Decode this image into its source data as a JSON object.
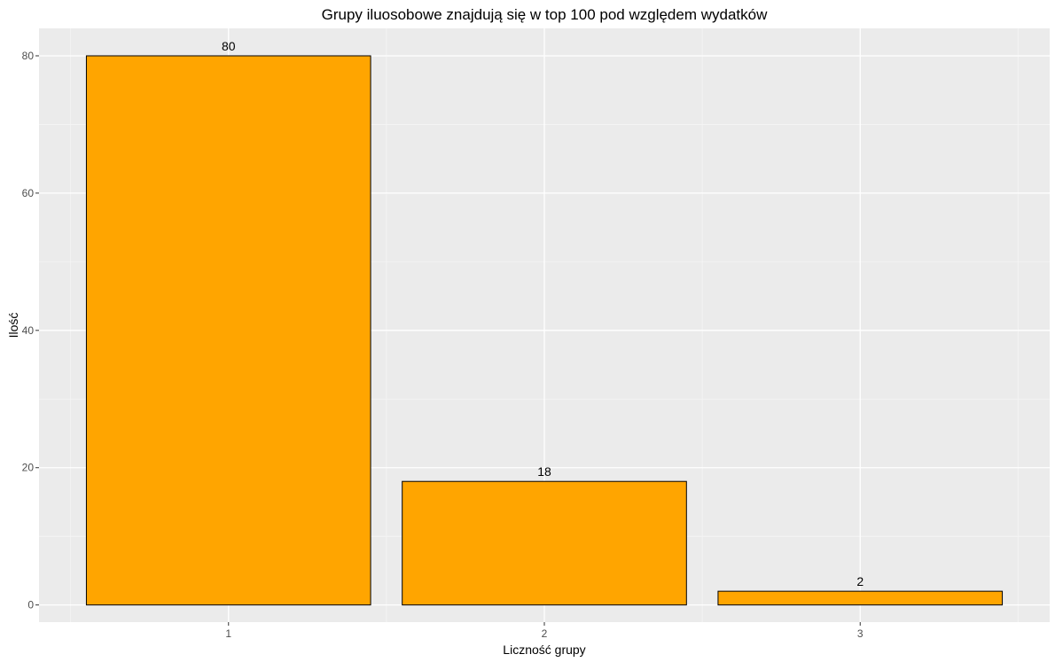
{
  "chart_data": {
    "type": "bar",
    "title": "Grupy iluosobowe znajdują się w top 100 pod względem wydatków",
    "xlabel": "Liczność grupy",
    "ylabel": "Ilość",
    "categories": [
      "1",
      "2",
      "3"
    ],
    "values": [
      80,
      18,
      2
    ],
    "data_labels": [
      "80",
      "18",
      "2"
    ],
    "ylim": [
      -2.5,
      84
    ],
    "y_ticks": [
      0,
      20,
      40,
      60,
      80
    ],
    "y_tick_labels": [
      "0",
      "20",
      "40",
      "60",
      "80"
    ],
    "grid": true,
    "legend": "none",
    "colors": {
      "bar_fill": "#FFA500",
      "bar_stroke": "#000000",
      "panel_background": "#EBEBEB",
      "grid_major": "#FFFFFF",
      "grid_minor": "#F5F5F5",
      "tick_text": "#4D4D4D"
    }
  }
}
